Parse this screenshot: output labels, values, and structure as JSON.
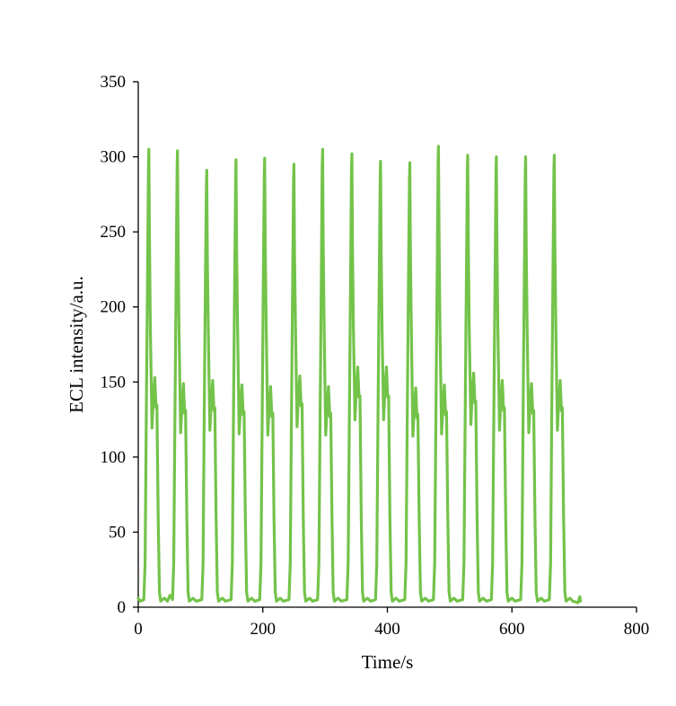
{
  "chart_data": {
    "type": "line",
    "title": "",
    "xlabel": "Time/s",
    "ylabel": "ECL intensity/a.u.",
    "xlim": [
      0,
      800
    ],
    "ylim": [
      0,
      350
    ],
    "xticks": [
      0,
      200,
      400,
      600,
      800
    ],
    "yticks": [
      0,
      50,
      100,
      150,
      200,
      250,
      300,
      350
    ],
    "xtick_labels": [
      "0",
      "200",
      "400",
      "600",
      "800"
    ],
    "ytick_labels": [
      "0",
      "50",
      "100",
      "150",
      "200",
      "250",
      "300",
      "350"
    ],
    "grid": false,
    "legend": "none",
    "line_color": "#73c34a",
    "series": [
      {
        "peaks": [
          {
            "time": 17,
            "intensity": 305,
            "shoulder": 153
          },
          {
            "time": 63,
            "intensity": 304,
            "shoulder": 149
          },
          {
            "time": 110,
            "intensity": 291,
            "shoulder": 151
          },
          {
            "time": 157,
            "intensity": 298,
            "shoulder": 148
          },
          {
            "time": 203,
            "intensity": 299,
            "shoulder": 147
          },
          {
            "time": 250,
            "intensity": 295,
            "shoulder": 154
          },
          {
            "time": 296,
            "intensity": 305,
            "shoulder": 147
          },
          {
            "time": 343,
            "intensity": 302,
            "shoulder": 160
          },
          {
            "time": 389,
            "intensity": 297,
            "shoulder": 160
          },
          {
            "time": 436,
            "intensity": 296,
            "shoulder": 146
          },
          {
            "time": 482,
            "intensity": 307,
            "shoulder": 148
          },
          {
            "time": 529,
            "intensity": 301,
            "shoulder": 156
          },
          {
            "time": 575,
            "intensity": 300,
            "shoulder": 151
          },
          {
            "time": 622,
            "intensity": 300,
            "shoulder": 149
          },
          {
            "time": 668,
            "intensity": 301,
            "shoulder": 151
          }
        ],
        "baseline": 4,
        "end_time": 710
      }
    ]
  }
}
